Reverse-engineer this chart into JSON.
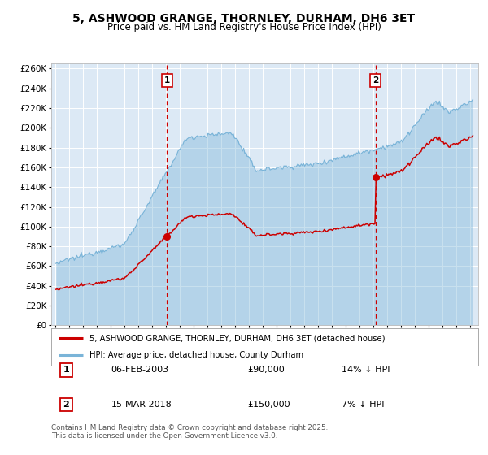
{
  "title": "5, ASHWOOD GRANGE, THORNLEY, DURHAM, DH6 3ET",
  "subtitle": "Price paid vs. HM Land Registry's House Price Index (HPI)",
  "legend_line1": "5, ASHWOOD GRANGE, THORNLEY, DURHAM, DH6 3ET (detached house)",
  "legend_line2": "HPI: Average price, detached house, County Durham",
  "transaction1_date": "06-FEB-2003",
  "transaction1_price": "£90,000",
  "transaction1_hpi": "14% ↓ HPI",
  "transaction2_date": "15-MAR-2018",
  "transaction2_price": "£150,000",
  "transaction2_hpi": "7% ↓ HPI",
  "hpi_color": "#7ab4d8",
  "price_color": "#cc0000",
  "fig_bg": "#ffffff",
  "plot_bg": "#dce9f5",
  "grid_color": "#ffffff",
  "dashed_line_color": "#cc0000",
  "sale1_t": 2003.083,
  "sale1_price": 90000,
  "sale2_t": 2018.167,
  "sale2_price": 150000,
  "footnote": "Contains HM Land Registry data © Crown copyright and database right 2025.\nThis data is licensed under the Open Government Licence v3.0."
}
